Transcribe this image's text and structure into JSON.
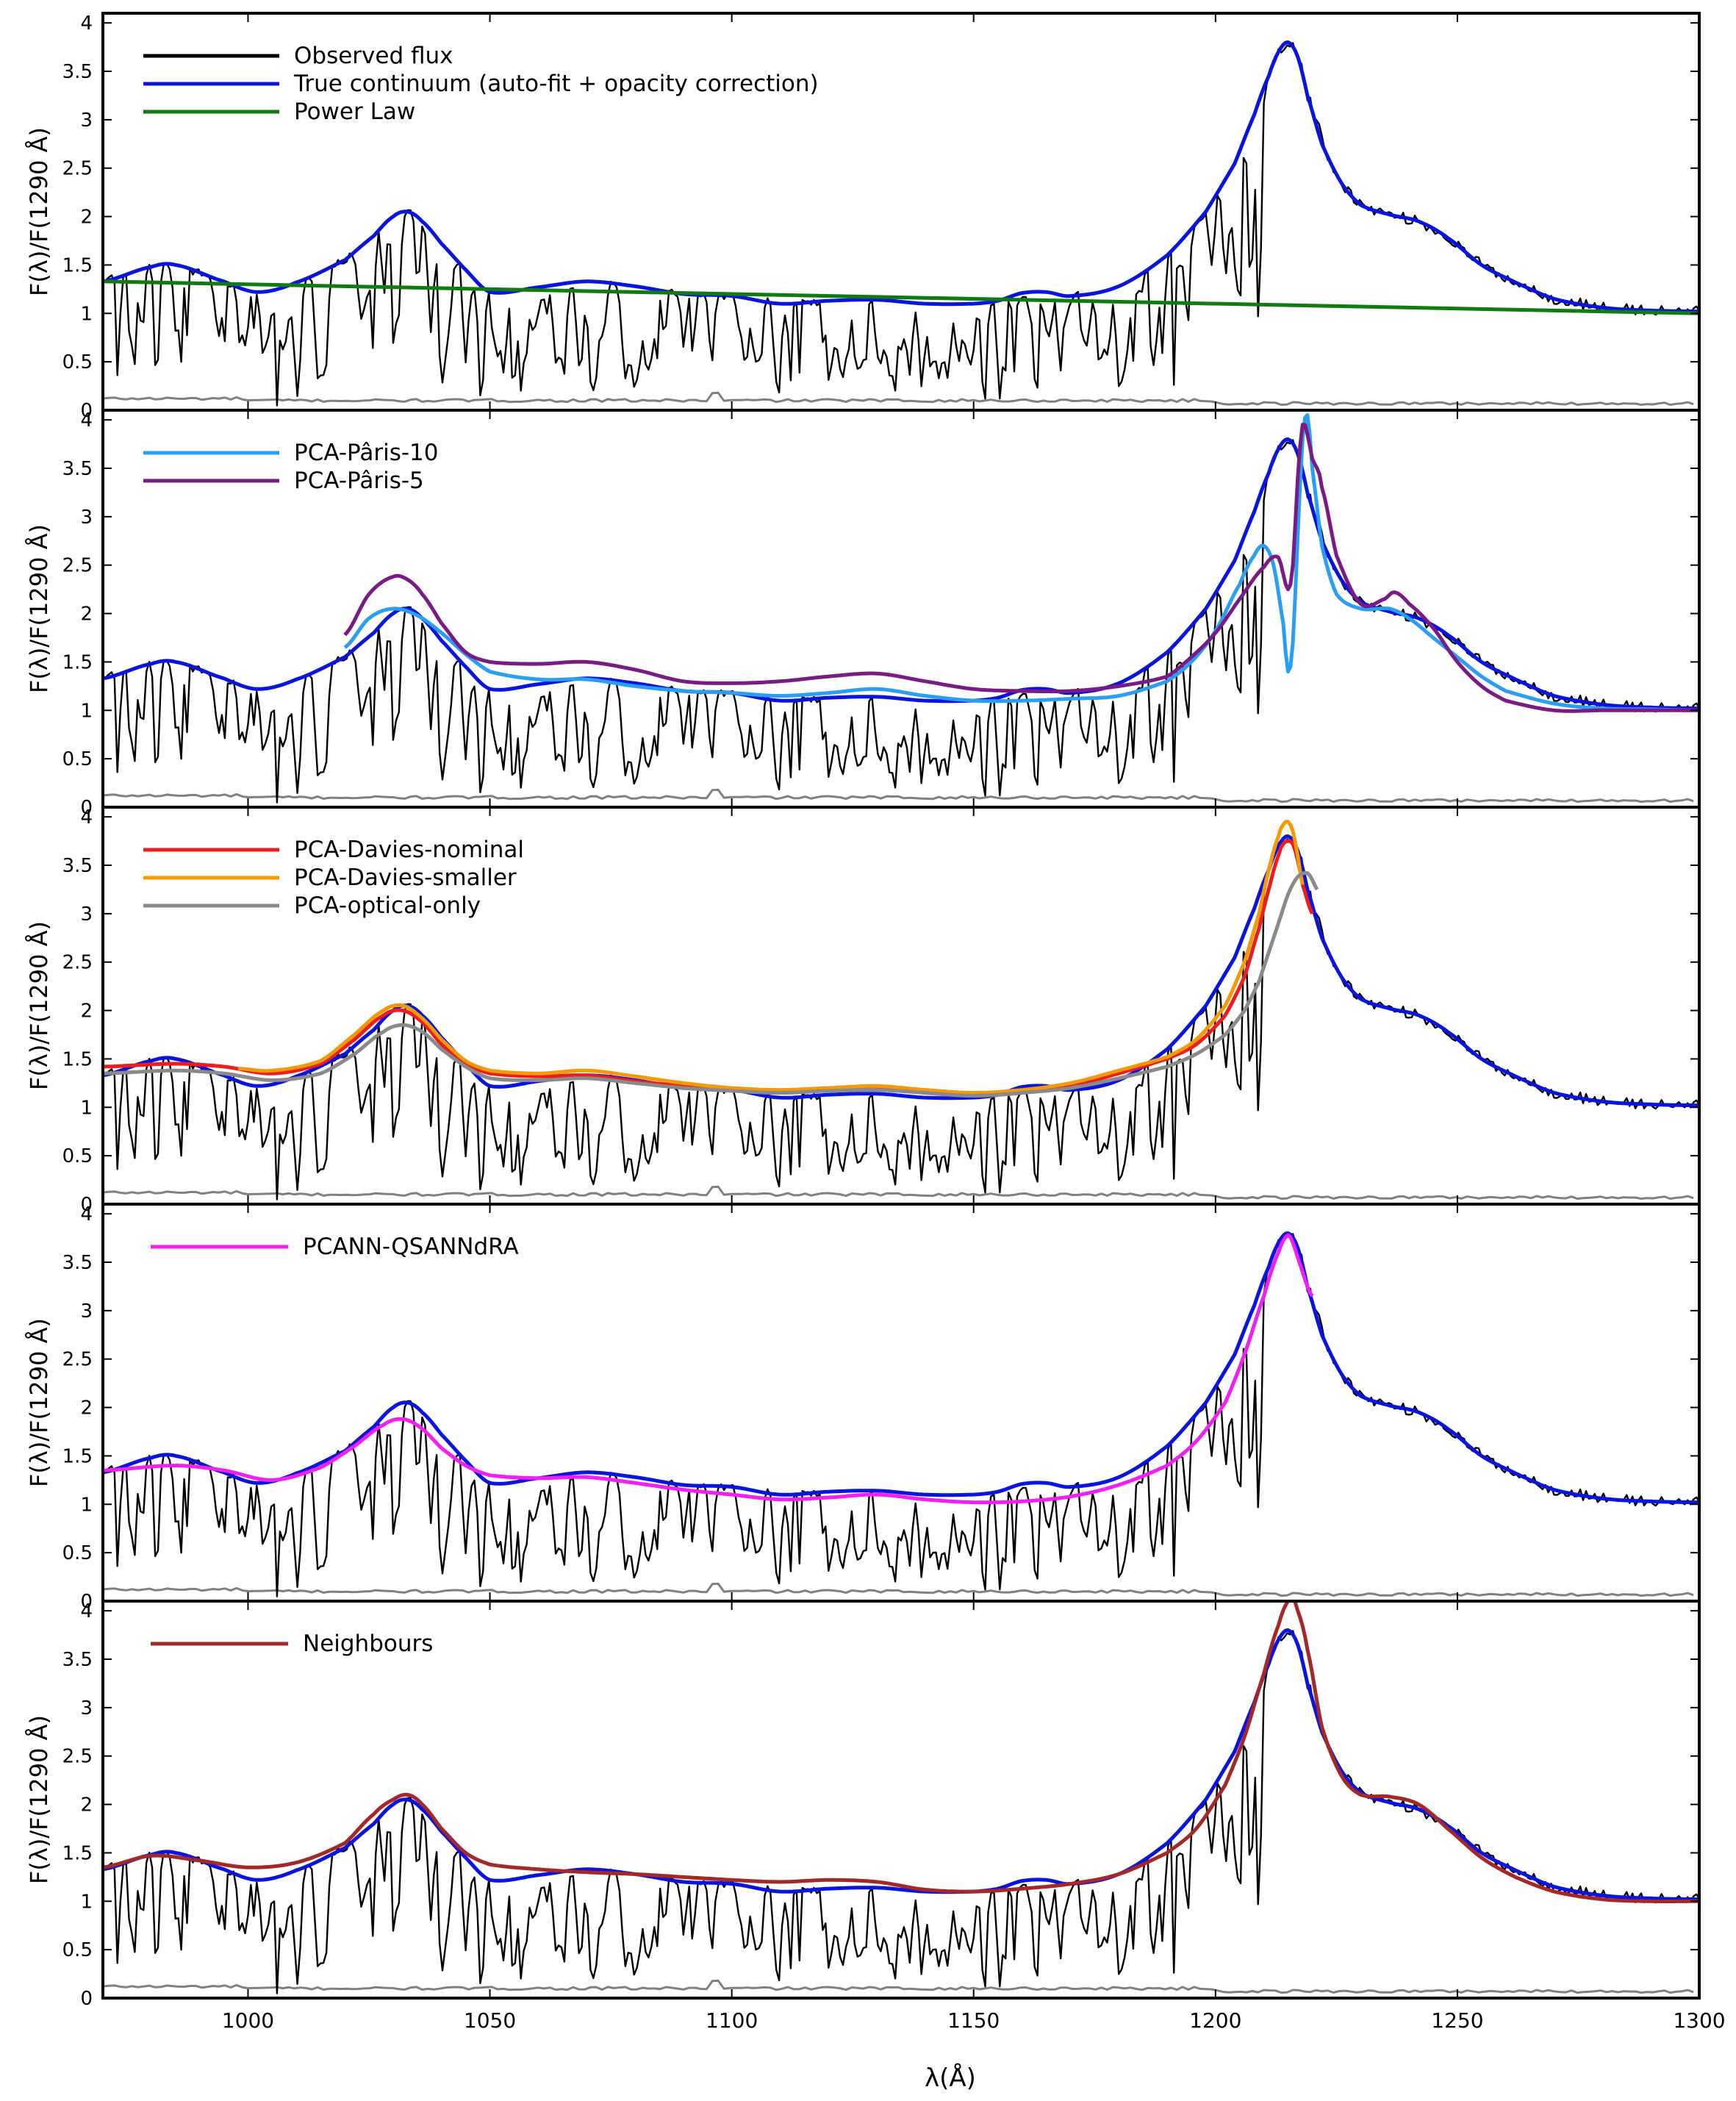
{
  "figure": {
    "xlabel": "λ(Å)",
    "ylabel": "F(λ)/F(1290 Å)"
  },
  "chart_data": [
    {
      "type": "line",
      "panel": 1,
      "xlim": [
        970,
        1300
      ],
      "ylim": [
        0,
        4.1
      ],
      "xticks": [
        "1000",
        "1050",
        "1100",
        "1150",
        "1200",
        "1250",
        "1300"
      ],
      "yticks": [
        "0",
        "0.5",
        "1",
        "1.5",
        "2",
        "2.5",
        "3",
        "3.5",
        "4"
      ],
      "legend_position": "top-left",
      "series": [
        {
          "name": "Observed flux",
          "color": "#000000",
          "in_legend": true,
          "kind": "observed"
        },
        {
          "name": "True continuum (auto-fit + opacity correction)",
          "color": "#0a14e0",
          "in_legend": true,
          "x": [
            970,
            980,
            985,
            995,
            1002,
            1010,
            1020,
            1026,
            1030,
            1033,
            1036,
            1040,
            1045,
            1050,
            1060,
            1070,
            1080,
            1090,
            1100,
            1110,
            1120,
            1130,
            1140,
            1150,
            1155,
            1160,
            1165,
            1170,
            1180,
            1190,
            1198,
            1204,
            1208,
            1211,
            1213,
            1215,
            1217,
            1219,
            1222,
            1226,
            1230,
            1236,
            1242,
            1248,
            1255,
            1262,
            1270,
            1280,
            1290,
            1300
          ],
          "y": [
            1.33,
            1.48,
            1.5,
            1.33,
            1.22,
            1.32,
            1.55,
            1.8,
            2.0,
            2.05,
            1.95,
            1.72,
            1.45,
            1.22,
            1.27,
            1.33,
            1.28,
            1.2,
            1.18,
            1.1,
            1.13,
            1.14,
            1.1,
            1.1,
            1.13,
            1.21,
            1.22,
            1.18,
            1.28,
            1.6,
            2.05,
            2.55,
            3.05,
            3.45,
            3.7,
            3.8,
            3.65,
            3.25,
            2.75,
            2.35,
            2.12,
            2.02,
            1.95,
            1.78,
            1.5,
            1.32,
            1.15,
            1.06,
            1.03,
            1.02
          ]
        },
        {
          "name": "Power Law",
          "color": "#117a11",
          "in_legend": true,
          "x": [
            970,
            1300
          ],
          "y": [
            1.33,
            1.0
          ]
        },
        {
          "name": "noise",
          "color": "#808080",
          "in_legend": false,
          "kind": "noise"
        }
      ],
      "legend": [
        "Observed flux",
        "True continuum (auto-fit + opacity correction)",
        "Power Law"
      ]
    },
    {
      "type": "line",
      "panel": 2,
      "xlim": [
        970,
        1300
      ],
      "ylim": [
        0,
        4.1
      ],
      "xticks": [
        "1000",
        "1050",
        "1100",
        "1150",
        "1200",
        "1250",
        "1300"
      ],
      "yticks": [
        "0",
        "0.5",
        "1",
        "1.5",
        "2",
        "2.5",
        "3",
        "3.5",
        "4"
      ],
      "legend_position": "top-left",
      "series": [
        {
          "name": "Observed flux",
          "color": "#000000",
          "in_legend": false,
          "kind": "observed"
        },
        {
          "name": "True continuum",
          "color": "#0a14e0",
          "in_legend": false,
          "ref": "continuum"
        },
        {
          "name": "PCA-Pâris-10",
          "color": "#2a9df4",
          "in_legend": true,
          "x": [
            1020,
            1025,
            1030,
            1035,
            1040,
            1045,
            1050,
            1060,
            1070,
            1080,
            1090,
            1100,
            1110,
            1120,
            1130,
            1140,
            1150,
            1160,
            1170,
            1180,
            1190,
            1195,
            1200,
            1205,
            1208,
            1210,
            1212,
            1214,
            1215,
            1216,
            1217,
            1218,
            1219,
            1220,
            1222,
            1225,
            1230,
            1236,
            1240,
            1245,
            1250,
            1255,
            1260,
            1270,
            1280,
            1290,
            1300
          ],
          "y": [
            1.65,
            1.95,
            2.05,
            1.98,
            1.8,
            1.58,
            1.4,
            1.32,
            1.32,
            1.25,
            1.2,
            1.18,
            1.15,
            1.18,
            1.22,
            1.15,
            1.1,
            1.1,
            1.12,
            1.15,
            1.3,
            1.5,
            1.82,
            2.3,
            2.6,
            2.7,
            2.5,
            1.9,
            1.4,
            1.7,
            2.8,
            3.8,
            4.05,
            3.5,
            2.7,
            2.2,
            2.05,
            2.05,
            1.95,
            1.75,
            1.55,
            1.35,
            1.2,
            1.07,
            1.02,
            1.01,
            1.0
          ]
        },
        {
          "name": "PCA-Pâris-5",
          "color": "#7a1a85",
          "in_legend": true,
          "x": [
            1020,
            1025,
            1030,
            1033,
            1036,
            1040,
            1045,
            1050,
            1060,
            1070,
            1080,
            1090,
            1100,
            1110,
            1120,
            1130,
            1140,
            1150,
            1160,
            1170,
            1180,
            1190,
            1195,
            1200,
            1205,
            1210,
            1213,
            1215,
            1216,
            1217,
            1218,
            1219,
            1220,
            1221,
            1222,
            1225,
            1230,
            1235,
            1237,
            1240,
            1245,
            1250,
            1255,
            1260,
            1270,
            1280,
            1290,
            1300
          ],
          "y": [
            1.78,
            2.2,
            2.38,
            2.35,
            2.2,
            1.9,
            1.6,
            1.5,
            1.48,
            1.5,
            1.42,
            1.3,
            1.28,
            1.3,
            1.35,
            1.38,
            1.3,
            1.22,
            1.2,
            1.2,
            1.25,
            1.35,
            1.55,
            1.8,
            2.15,
            2.48,
            2.58,
            2.25,
            2.5,
            3.4,
            3.95,
            3.85,
            3.6,
            3.5,
            3.3,
            2.6,
            2.1,
            2.15,
            2.22,
            2.1,
            1.85,
            1.5,
            1.25,
            1.1,
            1.0,
            1.0,
            1.0,
            1.0
          ]
        },
        {
          "name": "noise",
          "color": "#808080",
          "in_legend": false,
          "kind": "noise"
        }
      ],
      "legend": [
        "PCA-Pâris-10",
        "PCA-Pâris-5"
      ]
    },
    {
      "type": "line",
      "panel": 3,
      "xlim": [
        970,
        1300
      ],
      "ylim": [
        0,
        4.1
      ],
      "xticks": [
        "1000",
        "1050",
        "1100",
        "1150",
        "1200",
        "1250",
        "1300"
      ],
      "yticks": [
        "0",
        "0.5",
        "1",
        "1.5",
        "2",
        "2.5",
        "3",
        "3.5",
        "4"
      ],
      "legend_position": "top-left",
      "series": [
        {
          "name": "Observed flux",
          "color": "#000000",
          "in_legend": false,
          "kind": "observed"
        },
        {
          "name": "True continuum",
          "color": "#0a14e0",
          "in_legend": false,
          "ref": "continuum"
        },
        {
          "name": "PCA-Davies-nominal",
          "color": "#ee1c1c",
          "in_legend": true,
          "x": [
            970,
            985,
            995,
            1005,
            1015,
            1022,
            1028,
            1032,
            1036,
            1040,
            1045,
            1050,
            1060,
            1070,
            1080,
            1090,
            1100,
            1110,
            1120,
            1130,
            1140,
            1150,
            1160,
            1170,
            1180,
            1190,
            1196,
            1202,
            1206,
            1209,
            1211,
            1213,
            1214,
            1215,
            1216,
            1217,
            1218,
            1220
          ],
          "y": [
            1.42,
            1.45,
            1.42,
            1.35,
            1.45,
            1.7,
            1.95,
            2.0,
            1.88,
            1.65,
            1.45,
            1.35,
            1.32,
            1.33,
            1.27,
            1.22,
            1.18,
            1.15,
            1.18,
            1.2,
            1.15,
            1.12,
            1.15,
            1.22,
            1.35,
            1.5,
            1.65,
            1.95,
            2.35,
            2.85,
            3.25,
            3.6,
            3.72,
            3.75,
            3.72,
            3.55,
            3.3,
            3.0
          ]
        },
        {
          "name": "PCA-Davies-smaller",
          "color": "#f59a07",
          "in_legend": true,
          "x": [
            998,
            1005,
            1015,
            1022,
            1028,
            1032,
            1036,
            1040,
            1045,
            1050,
            1060,
            1070,
            1080,
            1090,
            1100,
            1110,
            1120,
            1130,
            1140,
            1150,
            1160,
            1170,
            1180,
            1190,
            1196,
            1202,
            1206,
            1209,
            1211,
            1213,
            1214,
            1215,
            1216,
            1217,
            1218
          ],
          "y": [
            1.4,
            1.38,
            1.48,
            1.75,
            2.0,
            2.05,
            1.92,
            1.7,
            1.48,
            1.38,
            1.35,
            1.38,
            1.32,
            1.25,
            1.2,
            1.18,
            1.2,
            1.22,
            1.18,
            1.15,
            1.18,
            1.25,
            1.38,
            1.52,
            1.7,
            2.05,
            2.5,
            3.0,
            3.45,
            3.8,
            3.92,
            3.95,
            3.85,
            3.6,
            3.3
          ]
        },
        {
          "name": "PCA-optical-only",
          "color": "#8a8a8a",
          "in_legend": true,
          "x": [
            970,
            985,
            995,
            1005,
            1015,
            1022,
            1028,
            1032,
            1036,
            1040,
            1045,
            1050,
            1060,
            1070,
            1080,
            1090,
            1100,
            1110,
            1120,
            1130,
            1140,
            1150,
            1160,
            1170,
            1180,
            1190,
            1196,
            1202,
            1206,
            1209,
            1211,
            1213,
            1215,
            1217,
            1219,
            1220,
            1221
          ],
          "y": [
            1.35,
            1.38,
            1.35,
            1.28,
            1.35,
            1.55,
            1.78,
            1.85,
            1.78,
            1.6,
            1.42,
            1.3,
            1.28,
            1.3,
            1.25,
            1.2,
            1.17,
            1.15,
            1.17,
            1.18,
            1.15,
            1.12,
            1.15,
            1.2,
            1.3,
            1.42,
            1.55,
            1.75,
            2.0,
            2.3,
            2.6,
            2.9,
            3.2,
            3.38,
            3.42,
            3.35,
            3.25
          ]
        },
        {
          "name": "noise",
          "color": "#808080",
          "in_legend": false,
          "kind": "noise"
        }
      ],
      "legend": [
        "PCA-Davies-nominal",
        "PCA-Davies-smaller",
        "PCA-optical-only"
      ]
    },
    {
      "type": "line",
      "panel": 4,
      "xlim": [
        970,
        1300
      ],
      "ylim": [
        0,
        4.1
      ],
      "xticks": [
        "1000",
        "1050",
        "1100",
        "1150",
        "1200",
        "1250",
        "1300"
      ],
      "yticks": [
        "0",
        "0.5",
        "1",
        "1.5",
        "2",
        "2.5",
        "3",
        "3.5",
        "4"
      ],
      "legend_position": "top-left",
      "series": [
        {
          "name": "Observed flux",
          "color": "#000000",
          "in_legend": false,
          "kind": "observed"
        },
        {
          "name": "True continuum",
          "color": "#0a14e0",
          "in_legend": false,
          "ref": "continuum"
        },
        {
          "name": "PCANN-QSANNdRA",
          "color": "#f21ff2",
          "in_legend": true,
          "x": [
            970,
            985,
            995,
            1005,
            1015,
            1022,
            1028,
            1032,
            1036,
            1040,
            1045,
            1050,
            1060,
            1070,
            1080,
            1090,
            1100,
            1110,
            1120,
            1130,
            1140,
            1150,
            1160,
            1170,
            1180,
            1190,
            1196,
            1202,
            1206,
            1210,
            1213,
            1215,
            1216,
            1217,
            1218,
            1219,
            1220
          ],
          "y": [
            1.35,
            1.4,
            1.35,
            1.25,
            1.38,
            1.6,
            1.82,
            1.88,
            1.78,
            1.58,
            1.4,
            1.3,
            1.27,
            1.28,
            1.22,
            1.15,
            1.1,
            1.05,
            1.07,
            1.1,
            1.05,
            1.02,
            1.03,
            1.08,
            1.2,
            1.4,
            1.65,
            2.05,
            2.55,
            3.15,
            3.6,
            3.78,
            3.7,
            3.55,
            3.4,
            3.25,
            3.15
          ]
        },
        {
          "name": "noise",
          "color": "#808080",
          "in_legend": false,
          "kind": "noise"
        }
      ],
      "legend": [
        "PCANN-QSANNdRA"
      ]
    },
    {
      "type": "line",
      "panel": 5,
      "xlim": [
        970,
        1300
      ],
      "ylim": [
        0,
        4.1
      ],
      "xticks": [
        "1000",
        "1050",
        "1100",
        "1150",
        "1200",
        "1250",
        "1300"
      ],
      "yticks": [
        "0",
        "0.5",
        "1",
        "1.5",
        "2",
        "2.5",
        "3",
        "3.5",
        "4"
      ],
      "legend_position": "top-left",
      "series": [
        {
          "name": "Observed flux",
          "color": "#000000",
          "in_legend": false,
          "kind": "observed"
        },
        {
          "name": "True continuum",
          "color": "#0a14e0",
          "in_legend": false,
          "ref": "continuum"
        },
        {
          "name": "Neighbours",
          "color": "#a52828",
          "in_legend": true,
          "x": [
            970,
            980,
            990,
            1000,
            1010,
            1020,
            1026,
            1030,
            1033,
            1036,
            1040,
            1045,
            1050,
            1060,
            1070,
            1080,
            1090,
            1100,
            1110,
            1120,
            1130,
            1140,
            1150,
            1160,
            1170,
            1180,
            1190,
            1196,
            1202,
            1206,
            1210,
            1213,
            1215,
            1216,
            1217,
            1219,
            1222,
            1226,
            1230,
            1236,
            1242,
            1248,
            1255,
            1262,
            1270,
            1280,
            1290,
            1300
          ],
          "y": [
            1.35,
            1.47,
            1.42,
            1.35,
            1.4,
            1.6,
            1.9,
            2.05,
            2.1,
            2.0,
            1.75,
            1.5,
            1.38,
            1.33,
            1.3,
            1.28,
            1.25,
            1.22,
            1.2,
            1.22,
            1.2,
            1.12,
            1.1,
            1.13,
            1.18,
            1.28,
            1.5,
            1.75,
            2.2,
            2.7,
            3.35,
            3.85,
            4.1,
            4.12,
            4.0,
            3.6,
            2.8,
            2.3,
            2.1,
            2.08,
            2.0,
            1.75,
            1.45,
            1.25,
            1.1,
            1.02,
            1.0,
            1.0
          ]
        },
        {
          "name": "noise",
          "color": "#808080",
          "in_legend": false,
          "kind": "noise"
        }
      ],
      "legend": [
        "Neighbours"
      ]
    }
  ]
}
